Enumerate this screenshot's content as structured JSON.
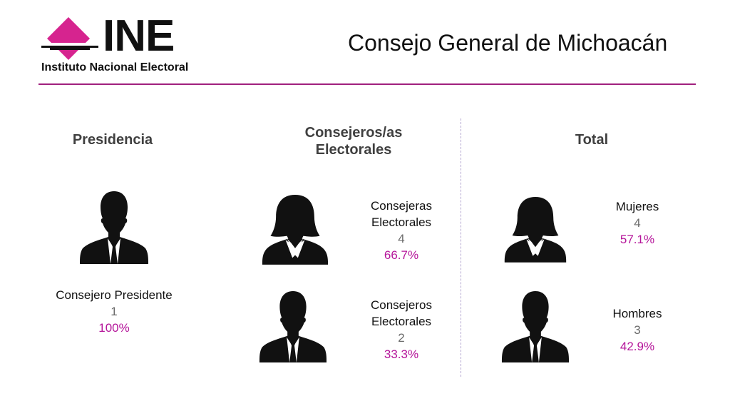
{
  "logo": {
    "wordmark": "INE",
    "subtitle": "Instituto Nacional Electoral"
  },
  "title": "Consejo General de Michoacán",
  "colors": {
    "accent": "#b5159a",
    "rule": "#a0207e",
    "logo_magenta": "#d6248f"
  },
  "presidencia": {
    "heading": "Presidencia",
    "label": "Consejero Presidente",
    "count": "1",
    "percent": "100%",
    "icon": "man-silhouette-icon"
  },
  "consejeros": {
    "heading_line1": "Consejeros/as",
    "heading_line2": "Electorales",
    "women": {
      "label_line1": "Consejeras",
      "label_line2": "Electorales",
      "count": "4",
      "percent": "66.7%",
      "icon": "woman-silhouette-icon"
    },
    "men": {
      "label_line1": "Consejeros",
      "label_line2": "Electorales",
      "count": "2",
      "percent": "33.3%",
      "icon": "man-silhouette-icon"
    }
  },
  "total": {
    "heading": "Total",
    "women": {
      "label": "Mujeres",
      "count": "4",
      "percent": "57.1%",
      "icon": "woman-silhouette-icon"
    },
    "men": {
      "label": "Hombres",
      "count": "3",
      "percent": "42.9%",
      "icon": "man-silhouette-icon"
    }
  }
}
